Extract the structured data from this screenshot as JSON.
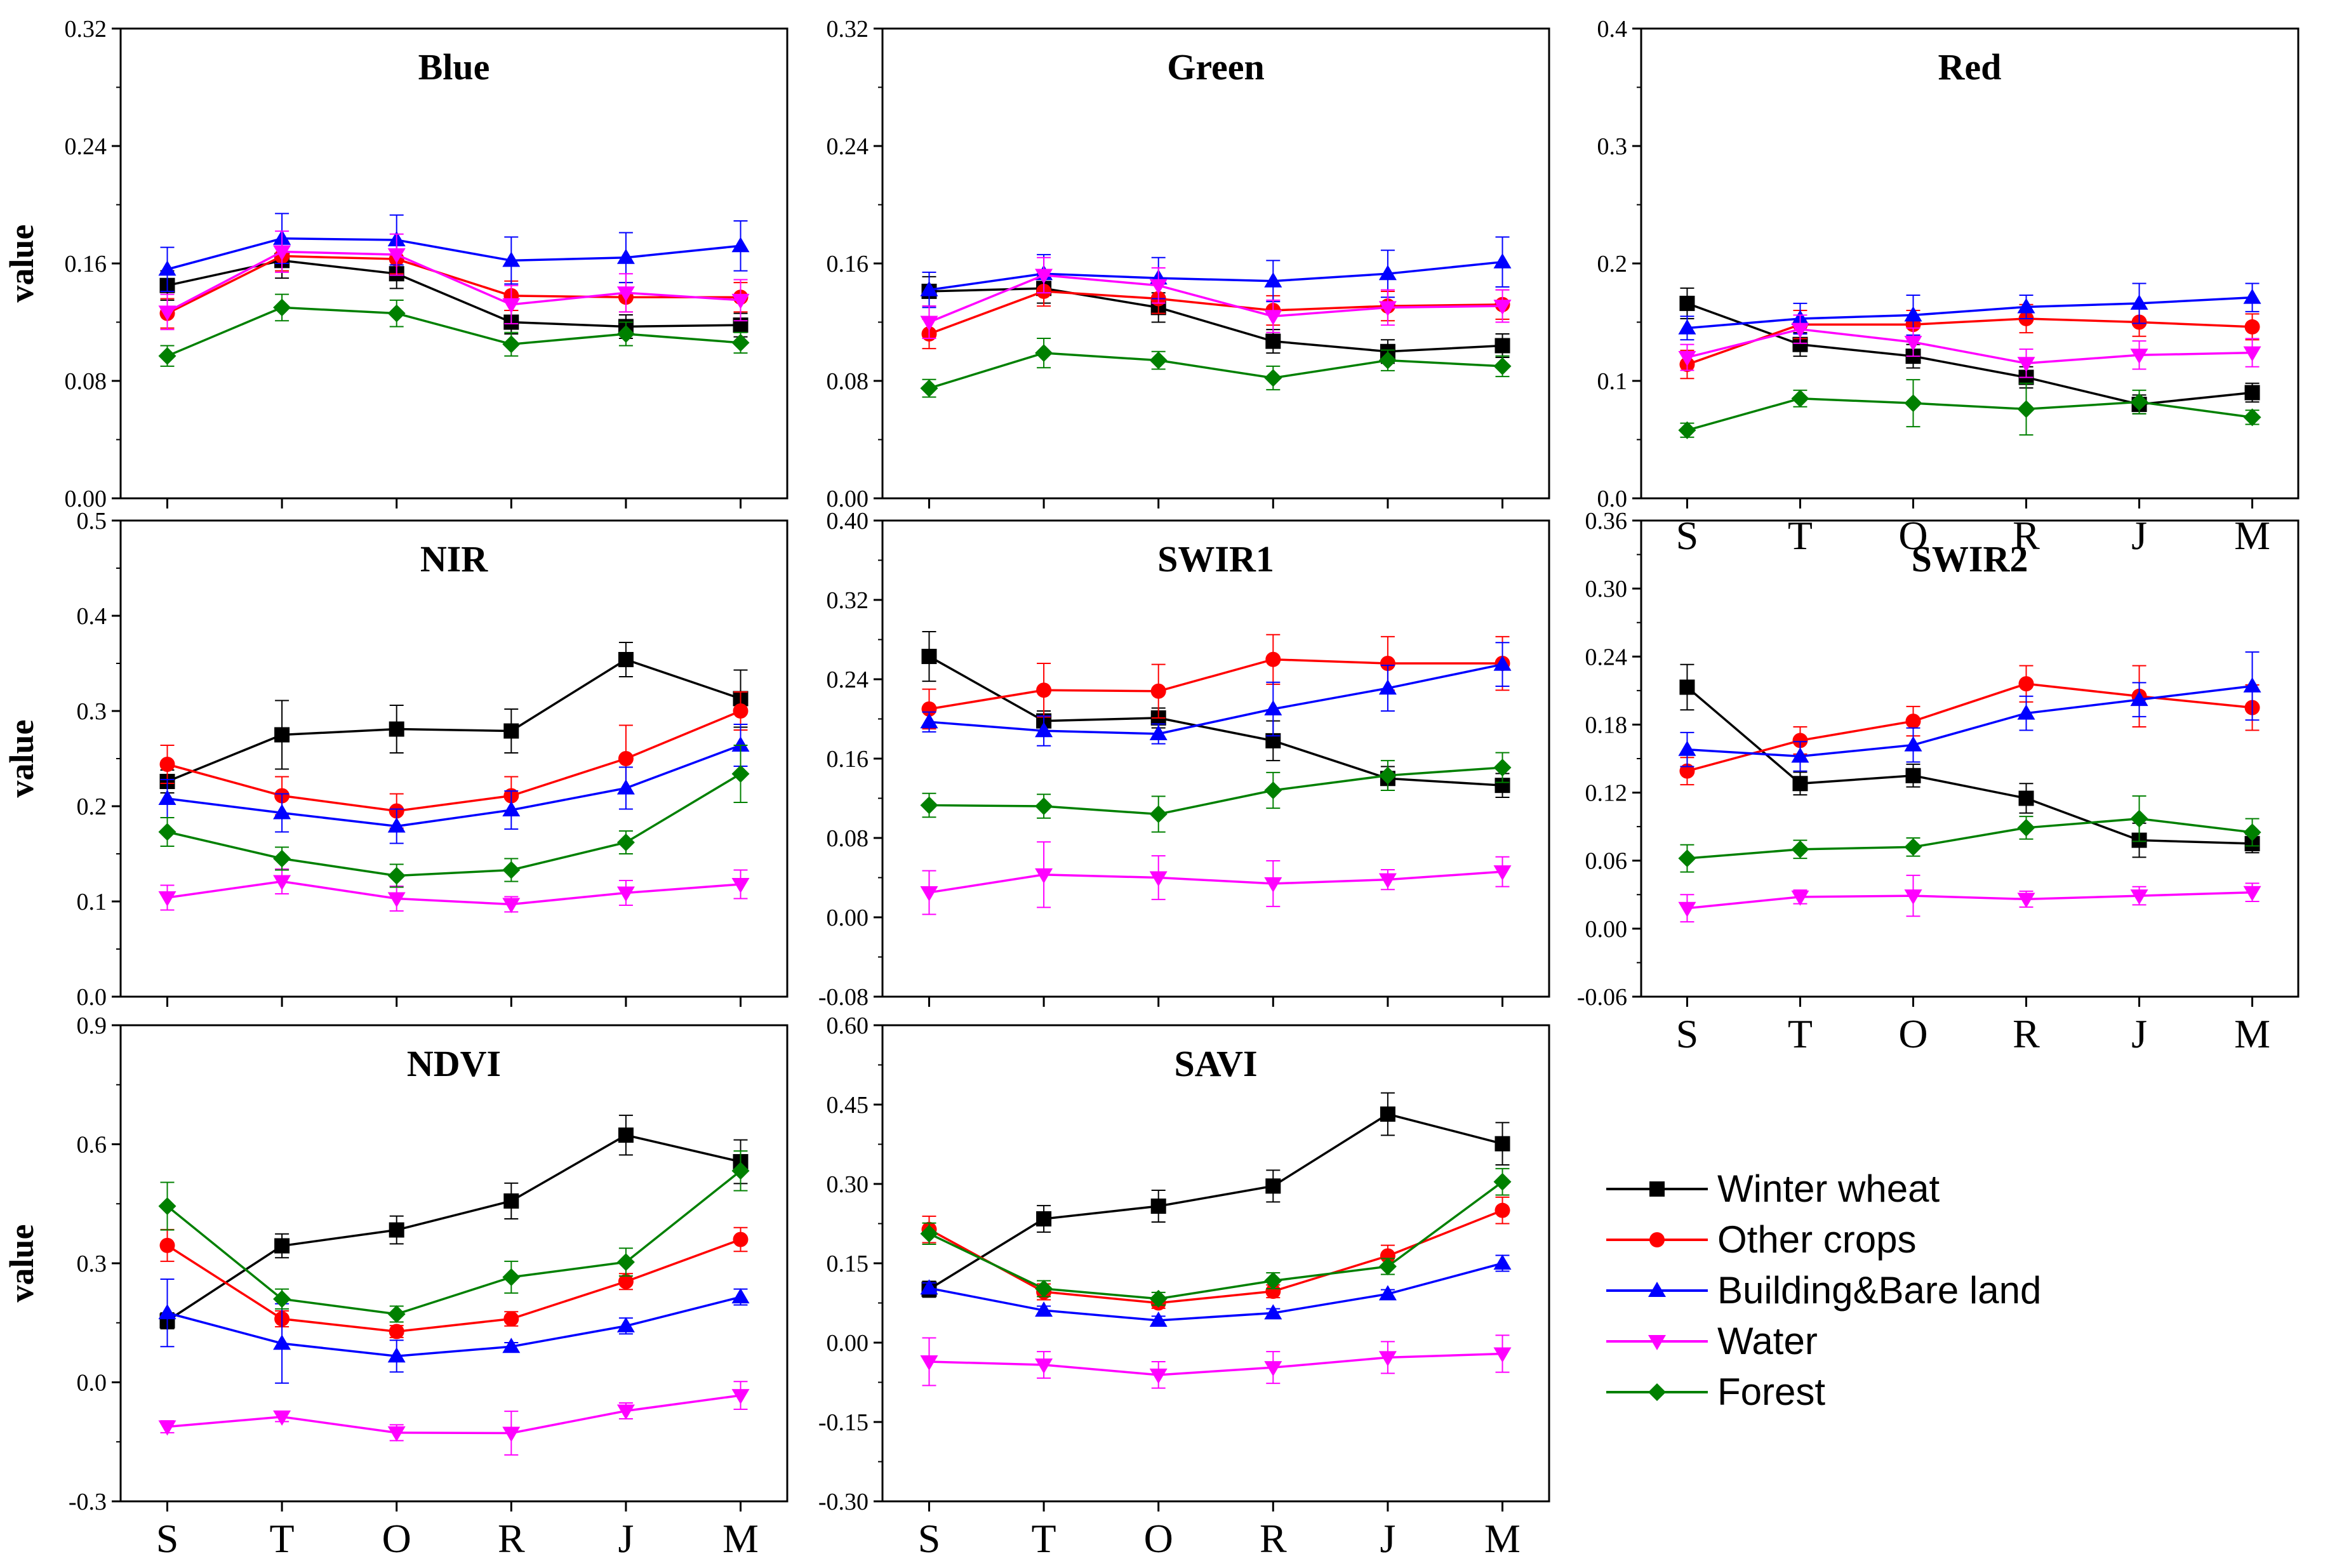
{
  "chart_data": {
    "type": "line",
    "categories": [
      "S",
      "T",
      "O",
      "R",
      "J",
      "M"
    ],
    "y_axis_label": "value",
    "series_meta": [
      {
        "name": "Winter wheat",
        "color": "#000000",
        "marker": "square"
      },
      {
        "name": "Other crops",
        "color": "#ff0000",
        "marker": "circle"
      },
      {
        "name": "Building&Bare land",
        "color": "#0000ff",
        "marker": "triangle-up"
      },
      {
        "name": "Water",
        "color": "#ff00ff",
        "marker": "triangle-down"
      },
      {
        "name": "Forest",
        "color": "#008000",
        "marker": "diamond"
      }
    ],
    "panels": [
      {
        "title": "Blue",
        "ylim": [
          0,
          0.32
        ],
        "ticks": [
          "0.00",
          "0.08",
          "0.16",
          "0.24",
          "0.32"
        ],
        "show_ylabel": true,
        "show_xticks": false,
        "series": [
          {
            "name": "Winter wheat",
            "values": [
              0.145,
              0.162,
              0.153,
              0.12,
              0.117,
              0.118
            ],
            "err": [
              0.01,
              0.012,
              0.01,
              0.008,
              0.008,
              0.008
            ]
          },
          {
            "name": "Other crops",
            "values": [
              0.126,
              0.165,
              0.163,
              0.138,
              0.137,
              0.137
            ],
            "err": [
              0.01,
              0.01,
              0.01,
              0.01,
              0.01,
              0.01
            ]
          },
          {
            "name": "Building&Bare land",
            "values": [
              0.156,
              0.177,
              0.176,
              0.162,
              0.164,
              0.172
            ],
            "err": [
              0.015,
              0.017,
              0.017,
              0.016,
              0.017,
              0.017
            ]
          },
          {
            "name": "Water",
            "values": [
              0.127,
              0.168,
              0.166,
              0.132,
              0.14,
              0.135
            ],
            "err": [
              0.012,
              0.014,
              0.014,
              0.013,
              0.013,
              0.014
            ]
          },
          {
            "name": "Forest",
            "values": [
              0.097,
              0.13,
              0.126,
              0.105,
              0.112,
              0.106
            ],
            "err": [
              0.007,
              0.009,
              0.009,
              0.008,
              0.008,
              0.007
            ]
          }
        ]
      },
      {
        "title": "Green",
        "ylim": [
          0,
          0.32
        ],
        "ticks": [
          "0.00",
          "0.08",
          "0.16",
          "0.24",
          "0.32"
        ],
        "show_ylabel": false,
        "show_xticks": false,
        "series": [
          {
            "name": "Winter wheat",
            "values": [
              0.141,
              0.143,
              0.13,
              0.107,
              0.1,
              0.104
            ],
            "err": [
              0.01,
              0.01,
              0.01,
              0.008,
              0.008,
              0.008
            ]
          },
          {
            "name": "Other crops",
            "values": [
              0.112,
              0.141,
              0.136,
              0.128,
              0.131,
              0.132
            ],
            "err": [
              0.01,
              0.01,
              0.01,
              0.01,
              0.01,
              0.01
            ]
          },
          {
            "name": "Building&Bare land",
            "values": [
              0.142,
              0.153,
              0.15,
              0.148,
              0.153,
              0.161
            ],
            "err": [
              0.012,
              0.013,
              0.014,
              0.014,
              0.016,
              0.017
            ]
          },
          {
            "name": "Water",
            "values": [
              0.12,
              0.152,
              0.145,
              0.124,
              0.13,
              0.131
            ],
            "err": [
              0.011,
              0.012,
              0.012,
              0.011,
              0.012,
              0.011
            ]
          },
          {
            "name": "Forest",
            "values": [
              0.075,
              0.099,
              0.094,
              0.082,
              0.094,
              0.09
            ],
            "err": [
              0.006,
              0.01,
              0.006,
              0.008,
              0.007,
              0.007
            ]
          }
        ]
      },
      {
        "title": "Red",
        "ylim": [
          0,
          0.4
        ],
        "ticks": [
          "0.0",
          "0.1",
          "0.2",
          "0.3",
          "0.4"
        ],
        "show_ylabel": false,
        "show_xticks": true,
        "series": [
          {
            "name": "Winter wheat",
            "values": [
              0.166,
              0.131,
              0.121,
              0.103,
              0.08,
              0.09
            ],
            "err": [
              0.013,
              0.01,
              0.01,
              0.009,
              0.008,
              0.008
            ]
          },
          {
            "name": "Other crops",
            "values": [
              0.114,
              0.148,
              0.148,
              0.153,
              0.15,
              0.146
            ],
            "err": [
              0.012,
              0.012,
              0.012,
              0.012,
              0.012,
              0.011
            ]
          },
          {
            "name": "Building&Bare land",
            "values": [
              0.145,
              0.153,
              0.156,
              0.163,
              0.166,
              0.171
            ],
            "err": [
              0.01,
              0.013,
              0.017,
              0.01,
              0.017,
              0.012
            ]
          },
          {
            "name": "Water",
            "values": [
              0.12,
              0.144,
              0.133,
              0.115,
              0.122,
              0.124
            ],
            "err": [
              0.011,
              0.012,
              0.012,
              0.012,
              0.012,
              0.012
            ]
          },
          {
            "name": "Forest",
            "values": [
              0.058,
              0.085,
              0.081,
              0.076,
              0.082,
              0.069
            ],
            "err": [
              0.006,
              0.007,
              0.02,
              0.022,
              0.01,
              0.006
            ]
          }
        ]
      },
      {
        "title": "NIR",
        "ylim": [
          0,
          0.5
        ],
        "ticks": [
          "0.0",
          "0.1",
          "0.2",
          "0.3",
          "0.4",
          "0.5"
        ],
        "show_ylabel": true,
        "show_xticks": false,
        "series": [
          {
            "name": "Winter wheat",
            "values": [
              0.226,
              0.275,
              0.281,
              0.279,
              0.354,
              0.313
            ],
            "err": [
              0.012,
              0.036,
              0.025,
              0.023,
              0.018,
              0.03
            ]
          },
          {
            "name": "Other crops",
            "values": [
              0.244,
              0.211,
              0.195,
              0.211,
              0.25,
              0.3
            ],
            "err": [
              0.02,
              0.02,
              0.018,
              0.02,
              0.035,
              0.02
            ]
          },
          {
            "name": "Building&Bare land",
            "values": [
              0.208,
              0.193,
              0.179,
              0.196,
              0.219,
              0.264
            ],
            "err": [
              0.02,
              0.02,
              0.018,
              0.02,
              0.022,
              0.022
            ]
          },
          {
            "name": "Water",
            "values": [
              0.104,
              0.121,
              0.103,
              0.097,
              0.109,
              0.118
            ],
            "err": [
              0.013,
              0.013,
              0.013,
              0.008,
              0.013,
              0.015
            ]
          },
          {
            "name": "Forest",
            "values": [
              0.173,
              0.145,
              0.127,
              0.133,
              0.162,
              0.234
            ],
            "err": [
              0.015,
              0.012,
              0.012,
              0.012,
              0.012,
              0.03
            ]
          }
        ]
      },
      {
        "title": "SWIR1",
        "ylim": [
          -0.08,
          0.4
        ],
        "ticks": [
          "-0.08",
          "0.00",
          "0.08",
          "0.16",
          "0.24",
          "0.32",
          "0.40"
        ],
        "show_ylabel": false,
        "show_xticks": false,
        "series": [
          {
            "name": "Winter wheat",
            "values": [
              0.263,
              0.198,
              0.201,
              0.178,
              0.14,
              0.133
            ],
            "err": [
              0.025,
              0.01,
              0.01,
              0.02,
              0.012,
              0.012
            ]
          },
          {
            "name": "Other crops",
            "values": [
              0.21,
              0.229,
              0.228,
              0.26,
              0.256,
              0.256
            ],
            "err": [
              0.02,
              0.027,
              0.027,
              0.025,
              0.027,
              0.027
            ]
          },
          {
            "name": "Building&Bare land",
            "values": [
              0.197,
              0.188,
              0.185,
              0.21,
              0.231,
              0.255
            ],
            "err": [
              0.01,
              0.015,
              0.01,
              0.027,
              0.023,
              0.022
            ]
          },
          {
            "name": "Water",
            "values": [
              0.025,
              0.043,
              0.04,
              0.034,
              0.038,
              0.046
            ],
            "err": [
              0.022,
              0.033,
              0.022,
              0.023,
              0.01,
              0.015
            ]
          },
          {
            "name": "Forest",
            "values": [
              0.113,
              0.112,
              0.104,
              0.128,
              0.143,
              0.151
            ],
            "err": [
              0.012,
              0.012,
              0.018,
              0.018,
              0.015,
              0.015
            ]
          }
        ]
      },
      {
        "title": "SWIR2",
        "ylim": [
          -0.06,
          0.36
        ],
        "ticks": [
          "-0.06",
          "0.00",
          "0.06",
          "0.12",
          "0.18",
          "0.24",
          "0.30",
          "0.36"
        ],
        "show_ylabel": false,
        "show_xticks": true,
        "series": [
          {
            "name": "Winter wheat",
            "values": [
              0.213,
              0.128,
              0.135,
              0.115,
              0.078,
              0.075
            ],
            "err": [
              0.02,
              0.01,
              0.01,
              0.013,
              0.015,
              0.008
            ]
          },
          {
            "name": "Other crops",
            "values": [
              0.139,
              0.166,
              0.183,
              0.216,
              0.205,
              0.195
            ],
            "err": [
              0.012,
              0.012,
              0.013,
              0.016,
              0.027,
              0.02
            ]
          },
          {
            "name": "Building&Bare land",
            "values": [
              0.158,
              0.152,
              0.162,
              0.19,
              0.202,
              0.214
            ],
            "err": [
              0.015,
              0.013,
              0.015,
              0.015,
              0.015,
              0.03
            ]
          },
          {
            "name": "Water",
            "values": [
              0.018,
              0.028,
              0.029,
              0.026,
              0.029,
              0.032
            ],
            "err": [
              0.012,
              0.006,
              0.018,
              0.007,
              0.008,
              0.008
            ]
          },
          {
            "name": "Forest",
            "values": [
              0.062,
              0.07,
              0.072,
              0.089,
              0.097,
              0.085
            ],
            "err": [
              0.012,
              0.008,
              0.008,
              0.01,
              0.02,
              0.012
            ]
          }
        ]
      },
      {
        "title": "NDVI",
        "ylim": [
          -0.3,
          0.9
        ],
        "ticks": [
          "-0.3",
          "0.0",
          "0.3",
          "0.6",
          "0.9"
        ],
        "show_ylabel": true,
        "show_xticks": true,
        "series": [
          {
            "name": "Winter wheat",
            "values": [
              0.155,
              0.344,
              0.384,
              0.457,
              0.623,
              0.556
            ],
            "err": [
              0.02,
              0.03,
              0.035,
              0.045,
              0.05,
              0.055
            ]
          },
          {
            "name": "Other crops",
            "values": [
              0.345,
              0.16,
              0.128,
              0.16,
              0.254,
              0.36
            ],
            "err": [
              0.04,
              0.02,
              0.015,
              0.018,
              0.02,
              0.03
            ]
          },
          {
            "name": "Building&Bare land",
            "values": [
              0.175,
              0.098,
              0.066,
              0.09,
              0.142,
              0.215
            ],
            "err": [
              0.085,
              0.1,
              0.04,
              0.01,
              0.02,
              0.02
            ]
          },
          {
            "name": "Water",
            "values": [
              -0.112,
              -0.087,
              -0.127,
              -0.128,
              -0.072,
              -0.033
            ],
            "err": [
              0.015,
              0.012,
              0.02,
              0.055,
              0.02,
              0.035
            ]
          },
          {
            "name": "Forest",
            "values": [
              0.444,
              0.21,
              0.172,
              0.265,
              0.303,
              0.533
            ],
            "err": [
              0.06,
              0.025,
              0.02,
              0.04,
              0.035,
              0.05
            ]
          }
        ]
      },
      {
        "title": "SAVI",
        "ylim": [
          -0.3,
          0.6
        ],
        "ticks": [
          "-0.30",
          "-0.15",
          "0.00",
          "0.15",
          "0.30",
          "0.45",
          "0.60"
        ],
        "show_ylabel": false,
        "show_xticks": true,
        "series": [
          {
            "name": "Winter wheat",
            "values": [
              0.101,
              0.234,
              0.258,
              0.296,
              0.432,
              0.376
            ],
            "err": [
              0.015,
              0.025,
              0.03,
              0.03,
              0.04,
              0.04
            ]
          },
          {
            "name": "Other crops",
            "values": [
              0.214,
              0.096,
              0.075,
              0.097,
              0.164,
              0.25
            ],
            "err": [
              0.025,
              0.015,
              0.01,
              0.012,
              0.02,
              0.025
            ]
          },
          {
            "name": "Building&Bare land",
            "values": [
              0.103,
              0.061,
              0.042,
              0.056,
              0.092,
              0.15
            ],
            "err": [
              0.01,
              0.008,
              0.008,
              0.008,
              0.008,
              0.015
            ]
          },
          {
            "name": "Water",
            "values": [
              -0.036,
              -0.042,
              -0.061,
              -0.047,
              -0.028,
              -0.021
            ],
            "err": [
              0.045,
              0.025,
              0.025,
              0.03,
              0.03,
              0.035
            ]
          },
          {
            "name": "Forest",
            "values": [
              0.206,
              0.102,
              0.083,
              0.117,
              0.144,
              0.304
            ],
            "err": [
              0.02,
              0.015,
              0.012,
              0.015,
              0.015,
              0.025
            ]
          }
        ]
      }
    ]
  }
}
